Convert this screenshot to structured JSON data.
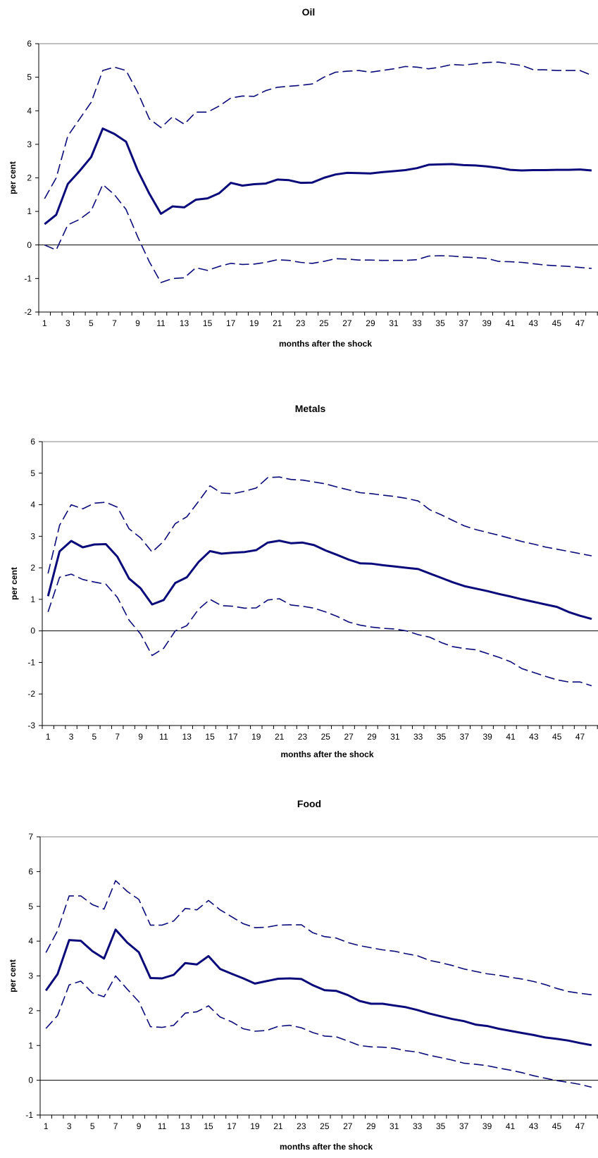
{
  "chart_data": [
    {
      "type": "line",
      "title": "Oil",
      "xlabel": "months after the shock",
      "ylabel": "per cent",
      "ylim": [
        -2,
        6
      ],
      "yticks": [
        -2,
        -1,
        0,
        1,
        2,
        3,
        4,
        5,
        6
      ],
      "x": [
        1,
        2,
        3,
        4,
        5,
        6,
        7,
        8,
        9,
        10,
        11,
        12,
        13,
        14,
        15,
        16,
        17,
        18,
        19,
        20,
        21,
        22,
        23,
        24,
        25,
        26,
        27,
        28,
        29,
        30,
        31,
        32,
        33,
        34,
        35,
        36,
        37,
        38,
        39,
        40,
        41,
        42,
        43,
        44,
        45,
        46,
        47,
        48
      ],
      "xtick_labels": [
        "1",
        "3",
        "5",
        "7",
        "9",
        "11",
        "13",
        "15",
        "17",
        "19",
        "21",
        "23",
        "25",
        "27",
        "29",
        "31",
        "33",
        "35",
        "37",
        "39",
        "41",
        "43",
        "45",
        "47"
      ],
      "series": [
        {
          "style": "solid",
          "values": [
            0.62,
            0.9,
            1.82,
            2.2,
            2.62,
            3.47,
            3.31,
            3.08,
            2.22,
            1.53,
            0.93,
            1.15,
            1.12,
            1.35,
            1.39,
            1.54,
            1.85,
            1.77,
            1.81,
            1.83,
            1.95,
            1.93,
            1.85,
            1.86,
            2.0,
            2.1,
            2.15,
            2.14,
            2.13,
            2.17,
            2.2,
            2.23,
            2.29,
            2.39,
            2.4,
            2.41,
            2.38,
            2.37,
            2.34,
            2.3,
            2.24,
            2.22,
            2.23,
            2.23,
            2.24,
            2.24,
            2.25,
            2.22
          ]
        },
        {
          "style": "dashed",
          "values": [
            1.38,
            2.0,
            3.25,
            3.75,
            4.25,
            5.2,
            5.3,
            5.2,
            4.55,
            3.76,
            3.5,
            3.82,
            3.6,
            3.96,
            3.96,
            4.14,
            4.38,
            4.44,
            4.43,
            4.6,
            4.7,
            4.73,
            4.76,
            4.8,
            5.0,
            5.15,
            5.18,
            5.2,
            5.15,
            5.2,
            5.25,
            5.32,
            5.3,
            5.25,
            5.3,
            5.38,
            5.36,
            5.4,
            5.44,
            5.45,
            5.4,
            5.35,
            5.22,
            5.22,
            5.2,
            5.2,
            5.2,
            5.06
          ]
        },
        {
          "style": "dashed",
          "values": [
            0.0,
            -0.15,
            0.6,
            0.76,
            1.02,
            1.8,
            1.5,
            1.06,
            0.24,
            -0.5,
            -1.12,
            -1.0,
            -0.98,
            -0.68,
            -0.76,
            -0.64,
            -0.55,
            -0.58,
            -0.57,
            -0.52,
            -0.44,
            -0.46,
            -0.52,
            -0.55,
            -0.49,
            -0.41,
            -0.42,
            -0.45,
            -0.45,
            -0.46,
            -0.46,
            -0.46,
            -0.44,
            -0.33,
            -0.32,
            -0.33,
            -0.36,
            -0.38,
            -0.4,
            -0.49,
            -0.5,
            -0.52,
            -0.56,
            -0.6,
            -0.62,
            -0.64,
            -0.67,
            -0.7
          ]
        }
      ]
    },
    {
      "type": "line",
      "title": "Metals",
      "xlabel": "months after the shock",
      "ylabel": "per cent",
      "ylim": [
        -3,
        6
      ],
      "yticks": [
        -3,
        -2,
        -1,
        0,
        1,
        2,
        3,
        4,
        5,
        6
      ],
      "x": [
        1,
        2,
        3,
        4,
        5,
        6,
        7,
        8,
        9,
        10,
        11,
        12,
        13,
        14,
        15,
        16,
        17,
        18,
        19,
        20,
        21,
        22,
        23,
        24,
        25,
        26,
        27,
        28,
        29,
        30,
        31,
        32,
        33,
        34,
        35,
        36,
        37,
        38,
        39,
        40,
        41,
        42,
        43,
        44,
        45,
        46,
        47,
        48
      ],
      "xtick_labels": [
        "1",
        "3",
        "5",
        "7",
        "9",
        "11",
        "13",
        "15",
        "17",
        "19",
        "21",
        "23",
        "25",
        "27",
        "29",
        "31",
        "33",
        "35",
        "37",
        "39",
        "41",
        "43",
        "45",
        "47"
      ],
      "series": [
        {
          "style": "solid",
          "values": [
            1.1,
            2.52,
            2.85,
            2.65,
            2.74,
            2.75,
            2.35,
            1.66,
            1.35,
            0.84,
            0.98,
            1.52,
            1.7,
            2.18,
            2.53,
            2.45,
            2.48,
            2.5,
            2.56,
            2.8,
            2.86,
            2.78,
            2.8,
            2.72,
            2.55,
            2.41,
            2.26,
            2.14,
            2.13,
            2.08,
            2.04,
            2.0,
            1.96,
            1.82,
            1.68,
            1.54,
            1.42,
            1.34,
            1.26,
            1.17,
            1.09,
            1.0,
            0.92,
            0.84,
            0.76,
            0.6,
            0.48,
            0.38
          ]
        },
        {
          "style": "dashed",
          "values": [
            1.82,
            3.35,
            4.0,
            3.87,
            4.05,
            4.08,
            3.92,
            3.24,
            2.95,
            2.5,
            2.84,
            3.4,
            3.62,
            4.1,
            4.6,
            4.37,
            4.35,
            4.43,
            4.53,
            4.86,
            4.88,
            4.8,
            4.78,
            4.72,
            4.66,
            4.56,
            4.47,
            4.38,
            4.35,
            4.3,
            4.26,
            4.2,
            4.12,
            3.84,
            3.68,
            3.5,
            3.33,
            3.21,
            3.12,
            3.03,
            2.93,
            2.83,
            2.75,
            2.66,
            2.59,
            2.52,
            2.45,
            2.38
          ]
        },
        {
          "style": "dashed",
          "values": [
            0.6,
            1.7,
            1.8,
            1.63,
            1.55,
            1.48,
            1.06,
            0.34,
            -0.1,
            -0.78,
            -0.55,
            0.0,
            0.17,
            0.68,
            1.0,
            0.8,
            0.78,
            0.72,
            0.73,
            0.98,
            1.02,
            0.82,
            0.78,
            0.72,
            0.6,
            0.46,
            0.28,
            0.18,
            0.12,
            0.08,
            0.06,
            0.0,
            -0.12,
            -0.2,
            -0.37,
            -0.5,
            -0.56,
            -0.6,
            -0.72,
            -0.84,
            -0.98,
            -1.2,
            -1.32,
            -1.44,
            -1.55,
            -1.62,
            -1.62,
            -1.74
          ]
        }
      ]
    },
    {
      "type": "line",
      "title": "Food",
      "xlabel": "months after the shock",
      "ylabel": "per cent",
      "ylim": [
        -1,
        7
      ],
      "yticks": [
        -1,
        0,
        1,
        2,
        3,
        4,
        5,
        6,
        7
      ],
      "x": [
        1,
        2,
        3,
        4,
        5,
        6,
        7,
        8,
        9,
        10,
        11,
        12,
        13,
        14,
        15,
        16,
        17,
        18,
        19,
        20,
        21,
        22,
        23,
        24,
        25,
        26,
        27,
        28,
        29,
        30,
        31,
        32,
        33,
        34,
        35,
        36,
        37,
        38,
        39,
        40,
        41,
        42,
        43,
        44,
        45,
        46,
        47,
        48
      ],
      "xtick_labels": [
        "1",
        "3",
        "5",
        "7",
        "9",
        "11",
        "13",
        "15",
        "17",
        "19",
        "21",
        "23",
        "25",
        "27",
        "29",
        "31",
        "33",
        "35",
        "37",
        "39",
        "41",
        "43",
        "45",
        "47"
      ],
      "series": [
        {
          "style": "solid",
          "values": [
            2.58,
            3.05,
            4.03,
            4.01,
            3.71,
            3.5,
            4.33,
            3.96,
            3.68,
            2.94,
            2.93,
            3.03,
            3.37,
            3.33,
            3.57,
            3.2,
            3.06,
            2.93,
            2.78,
            2.85,
            2.92,
            2.93,
            2.91,
            2.73,
            2.59,
            2.57,
            2.45,
            2.28,
            2.2,
            2.2,
            2.15,
            2.1,
            2.02,
            1.92,
            1.84,
            1.76,
            1.7,
            1.6,
            1.56,
            1.48,
            1.42,
            1.36,
            1.3,
            1.23,
            1.19,
            1.14,
            1.07,
            1.01
          ]
        },
        {
          "style": "dashed",
          "values": [
            3.67,
            4.3,
            5.3,
            5.3,
            5.05,
            4.92,
            5.74,
            5.43,
            5.2,
            4.46,
            4.46,
            4.58,
            4.94,
            4.9,
            5.17,
            4.9,
            4.7,
            4.5,
            4.39,
            4.4,
            4.46,
            4.47,
            4.47,
            4.24,
            4.13,
            4.09,
            3.96,
            3.87,
            3.81,
            3.75,
            3.71,
            3.64,
            3.58,
            3.45,
            3.38,
            3.3,
            3.2,
            3.13,
            3.06,
            3.02,
            2.96,
            2.91,
            2.84,
            2.75,
            2.64,
            2.55,
            2.5,
            2.46
          ]
        },
        {
          "style": "dashed",
          "values": [
            1.49,
            1.86,
            2.74,
            2.85,
            2.51,
            2.4,
            3.0,
            2.62,
            2.26,
            1.54,
            1.52,
            1.58,
            1.93,
            1.97,
            2.14,
            1.82,
            1.68,
            1.48,
            1.41,
            1.43,
            1.55,
            1.58,
            1.51,
            1.37,
            1.27,
            1.25,
            1.13,
            1.0,
            0.96,
            0.95,
            0.92,
            0.85,
            0.81,
            0.72,
            0.65,
            0.58,
            0.49,
            0.46,
            0.42,
            0.35,
            0.29,
            0.22,
            0.13,
            0.06,
            -0.01,
            -0.06,
            -0.12,
            -0.2
          ]
        }
      ]
    }
  ]
}
